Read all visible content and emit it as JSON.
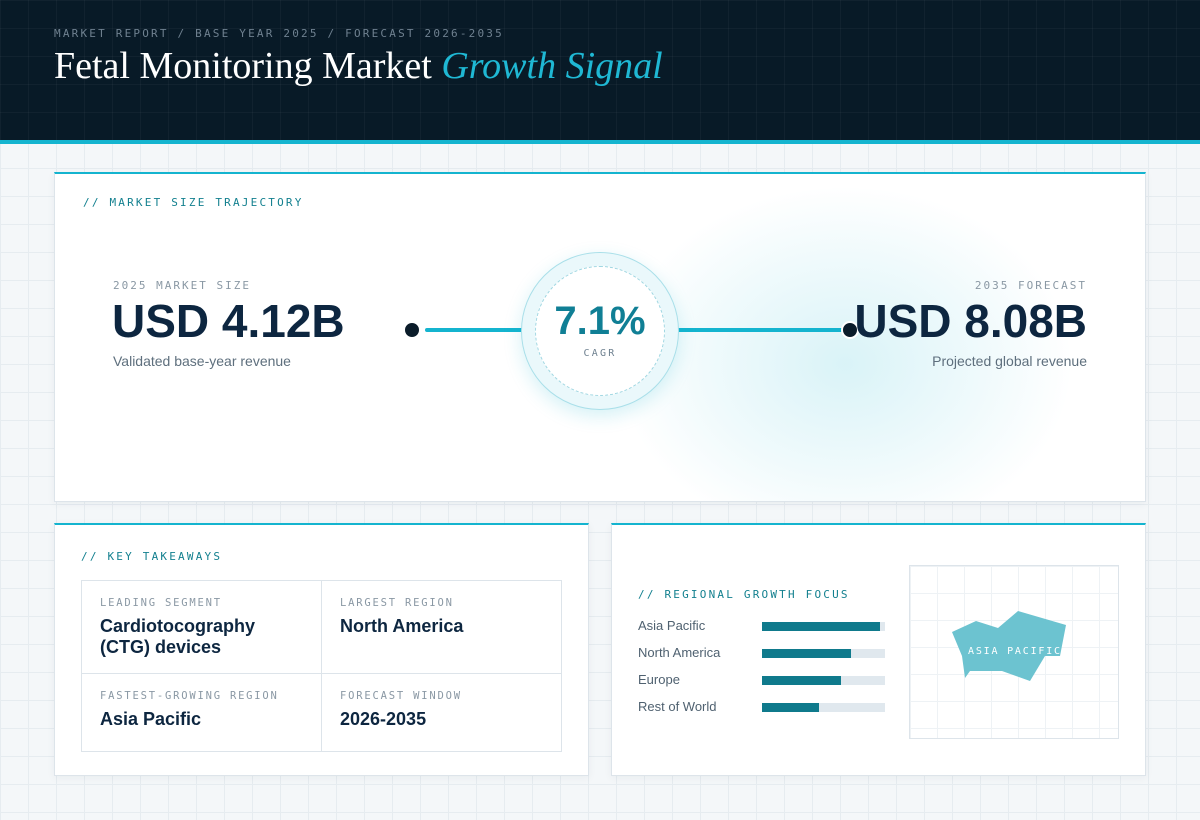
{
  "header": {
    "eyebrow": "MARKET REPORT / BASE YEAR 2025 / FORECAST 2026-2035",
    "title_main": "Fetal Monitoring Market",
    "title_accent": "Growth Signal"
  },
  "trajectory": {
    "section_label": "// MARKET SIZE TRAJECTORY",
    "base": {
      "label": "2025 MARKET SIZE",
      "value": "USD 4.12B",
      "sub": "Validated base-year revenue"
    },
    "cagr": {
      "value": "7.1%",
      "label": "CAGR"
    },
    "forecast": {
      "label": "2035 FORECAST",
      "value": "USD 8.08B",
      "sub": "Projected global revenue"
    }
  },
  "takeaways": {
    "section_label": "// KEY TAKEAWAYS",
    "items": [
      {
        "label": "LEADING SEGMENT",
        "value": "Cardiotocography (CTG) devices"
      },
      {
        "label": "LARGEST REGION",
        "value": "North America"
      },
      {
        "label": "FASTEST-GROWING REGION",
        "value": "Asia Pacific"
      },
      {
        "label": "FORECAST WINDOW",
        "value": "2026-2035"
      }
    ]
  },
  "regional": {
    "section_label": "// REGIONAL GROWTH FOCUS",
    "bars": [
      {
        "name": "Asia Pacific",
        "level": 0.96
      },
      {
        "name": "North America",
        "level": 0.72
      },
      {
        "name": "Europe",
        "level": 0.64
      },
      {
        "name": "Rest of World",
        "level": 0.46
      }
    ],
    "map_label": "ASIA PACIFIC",
    "map_color": "#6cc3d0"
  },
  "colors": {
    "accent": "#14b4cf",
    "header_bg": "#081a27",
    "bar_fill": "#0f7a8c"
  }
}
